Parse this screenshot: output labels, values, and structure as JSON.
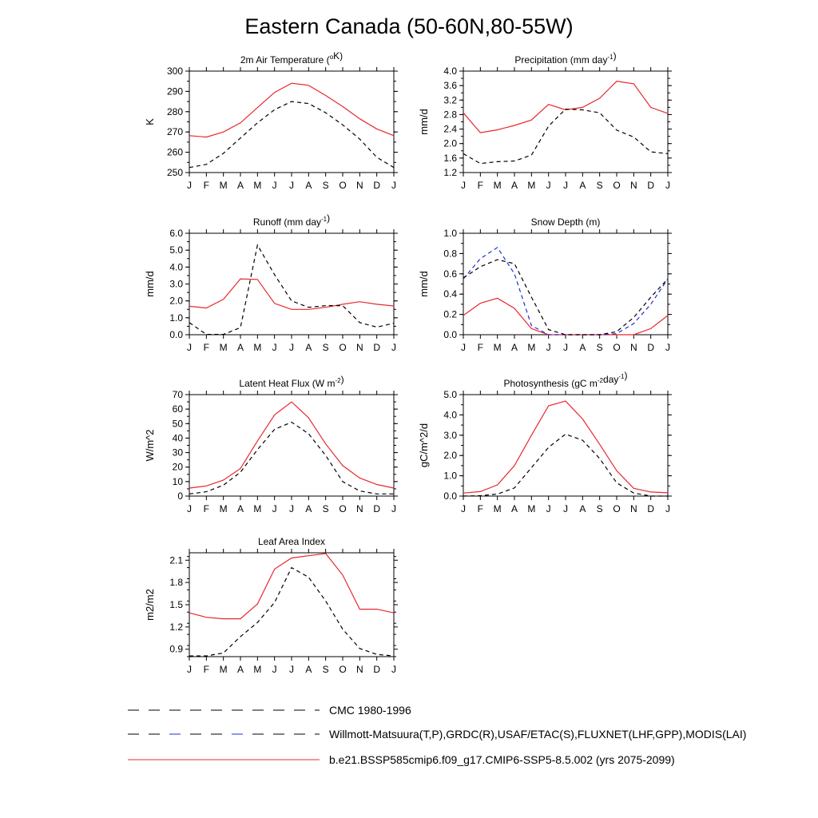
{
  "title": "Eastern Canada (50-60N,80-55W)",
  "months": [
    "J",
    "F",
    "M",
    "A",
    "M",
    "J",
    "J",
    "A",
    "S",
    "O",
    "N",
    "D",
    "J"
  ],
  "colors": {
    "model": "#e8282e",
    "obs_black": "#000000",
    "obs_blue": "#1c2fd0"
  },
  "legend": [
    {
      "label": "CMC 1980-1996",
      "style": "dash-black"
    },
    {
      "label": "Willmott-Matsuura(T,P),GRDC(R),USAF/ETAC(S),FLUXNET(LHF,GPP),MODIS(LAI)",
      "style": "dash-black-blue"
    },
    {
      "label": "b.e21.BSSP585cmip6.f09_g17.CMIP6-SSP5-8.5.002 (yrs 2075-2099)",
      "style": "solid-red"
    }
  ],
  "chart_data": [
    {
      "type": "line",
      "title": "2m Air Temperature (°K)",
      "title_parts": {
        "pre": "2m Air Temperature (",
        "sup": "o",
        "post": "K)"
      },
      "ylabel": "K",
      "ylim": [
        250,
        300
      ],
      "yticks": [
        250,
        260,
        270,
        280,
        290,
        300
      ],
      "ytick_labels": [
        "250",
        "260",
        "270",
        "280",
        "290",
        "300"
      ],
      "series": [
        {
          "style": "solid-red",
          "values": [
            268.2,
            267.5,
            270,
            274.5,
            282,
            289.5,
            294,
            293,
            288,
            282.5,
            276.5,
            271.5,
            268.2
          ]
        },
        {
          "style": "dash-black",
          "values": [
            252.5,
            254,
            259.5,
            267,
            274.5,
            281,
            285,
            284,
            279.5,
            273.5,
            266.5,
            257.5,
            252.5
          ]
        }
      ]
    },
    {
      "type": "line",
      "title": "Precipitation (mm day-1)",
      "title_parts": {
        "pre": "Precipitation (mm day",
        "sup": "-1",
        "post": ")"
      },
      "ylabel": "mm/d",
      "ylim": [
        1.2,
        4.0
      ],
      "yticks": [
        1.2,
        1.6,
        2.0,
        2.4,
        2.8,
        3.2,
        3.6,
        4.0
      ],
      "ytick_labels": [
        "1.2",
        "1.6",
        "2.0",
        "2.4",
        "2.8",
        "3.2",
        "3.6",
        "4.0"
      ],
      "series": [
        {
          "style": "solid-red",
          "values": [
            2.85,
            2.3,
            2.38,
            2.5,
            2.65,
            3.08,
            2.93,
            3.0,
            3.25,
            3.72,
            3.65,
            3.0,
            2.83
          ]
        },
        {
          "style": "dash-black",
          "values": [
            1.72,
            1.45,
            1.5,
            1.52,
            1.68,
            2.48,
            2.95,
            2.93,
            2.85,
            2.37,
            2.18,
            1.77,
            1.72
          ]
        }
      ]
    },
    {
      "type": "line",
      "title": "Runoff (mm day-1)",
      "title_parts": {
        "pre": "Runoff (mm day",
        "sup": "-1",
        "post": ")"
      },
      "ylabel": "mm/d",
      "ylim": [
        0,
        6
      ],
      "yticks": [
        0,
        1,
        2,
        3,
        4,
        5,
        6
      ],
      "ytick_labels": [
        "0.0",
        "1.0",
        "2.0",
        "3.0",
        "4.0",
        "5.0",
        "6.0"
      ],
      "series": [
        {
          "style": "solid-red",
          "values": [
            1.68,
            1.58,
            2.1,
            3.3,
            3.27,
            1.85,
            1.5,
            1.5,
            1.62,
            1.8,
            1.95,
            1.8,
            1.7
          ]
        },
        {
          "style": "dash-black",
          "values": [
            0.72,
            0.02,
            0.02,
            0.42,
            5.3,
            3.55,
            2.0,
            1.62,
            1.72,
            1.72,
            0.72,
            0.45,
            0.68
          ]
        }
      ]
    },
    {
      "type": "line",
      "title": "Snow Depth (m)",
      "title_parts": {
        "pre": "Snow Depth (m)",
        "sup": "",
        "post": ""
      },
      "ylabel": "mm/d",
      "ylim": [
        0,
        1
      ],
      "yticks": [
        0,
        0.2,
        0.4,
        0.6,
        0.8,
        1.0
      ],
      "ytick_labels": [
        "0.0",
        "0.2",
        "0.4",
        "0.6",
        "0.8",
        "1.0"
      ],
      "series": [
        {
          "style": "solid-red",
          "values": [
            0.19,
            0.31,
            0.36,
            0.26,
            0.06,
            0.0,
            0.0,
            0.0,
            0.0,
            0.0,
            0.0,
            0.06,
            0.19
          ]
        },
        {
          "style": "dash-blue",
          "values": [
            0.55,
            0.75,
            0.86,
            0.6,
            0.09,
            0.0,
            0.0,
            0.0,
            0.0,
            0.01,
            0.11,
            0.3,
            0.55
          ]
        },
        {
          "style": "dash-black",
          "values": [
            0.56,
            0.67,
            0.74,
            0.7,
            0.37,
            0.05,
            0.0,
            0.0,
            0.0,
            0.03,
            0.17,
            0.37,
            0.55
          ]
        }
      ]
    },
    {
      "type": "line",
      "title": "Latent Heat Flux (W m-2)",
      "title_parts": {
        "pre": "Latent Heat Flux (W m",
        "sup": "-2",
        "post": ")"
      },
      "ylabel": "W/m^2",
      "ylim": [
        0,
        70
      ],
      "yticks": [
        0,
        10,
        20,
        30,
        40,
        50,
        60,
        70
      ],
      "ytick_labels": [
        "0",
        "10",
        "20",
        "30",
        "40",
        "50",
        "60",
        "70"
      ],
      "series": [
        {
          "style": "solid-red",
          "values": [
            5.5,
            7,
            11,
            19,
            38,
            56,
            65,
            54,
            36,
            21,
            12.5,
            8,
            5.5
          ]
        },
        {
          "style": "dash-black",
          "values": [
            1.5,
            3,
            7.5,
            16.5,
            32,
            46,
            51,
            43,
            28,
            10,
            3.5,
            1.5,
            1.5
          ]
        }
      ]
    },
    {
      "type": "line",
      "title": "Photosynthesis (gC m-2day-1)",
      "title_parts": {
        "pre": "Photosynthesis (gC m",
        "sup": "-2",
        "mid": "day",
        "sup2": "-1",
        "post": ")"
      },
      "ylabel": "gC/m^2/d",
      "ylim": [
        0,
        5
      ],
      "yticks": [
        0,
        1,
        2,
        3,
        4,
        5
      ],
      "ytick_labels": [
        "0.0",
        "1.0",
        "2.0",
        "3.0",
        "4.0",
        "5.0"
      ],
      "series": [
        {
          "style": "solid-red",
          "values": [
            0.15,
            0.22,
            0.55,
            1.5,
            3.0,
            4.45,
            4.68,
            3.8,
            2.55,
            1.25,
            0.38,
            0.2,
            0.16
          ]
        },
        {
          "style": "dash-black",
          "values": [
            0.0,
            0.02,
            0.1,
            0.4,
            1.4,
            2.4,
            3.05,
            2.75,
            1.85,
            0.65,
            0.15,
            0.0,
            0.0
          ]
        }
      ]
    },
    {
      "type": "line",
      "title": "Leaf Area Index",
      "title_parts": {
        "pre": "Leaf Area Index",
        "sup": "",
        "post": ""
      },
      "ylabel": "m2/m2",
      "ylim": [
        0.8,
        2.2
      ],
      "yticks": [
        0.9,
        1.2,
        1.5,
        1.8,
        2.1
      ],
      "ytick_labels": [
        "0.9",
        "1.2",
        "1.5",
        "1.8",
        "2.1"
      ],
      "series": [
        {
          "style": "solid-red",
          "values": [
            1.39,
            1.33,
            1.31,
            1.31,
            1.51,
            1.98,
            2.13,
            2.16,
            2.19,
            1.9,
            1.44,
            1.44,
            1.39
          ]
        },
        {
          "style": "dash-black",
          "values": [
            0.81,
            0.81,
            0.85,
            1.07,
            1.26,
            1.53,
            2.0,
            1.87,
            1.55,
            1.17,
            0.91,
            0.83,
            0.81
          ]
        }
      ]
    }
  ]
}
